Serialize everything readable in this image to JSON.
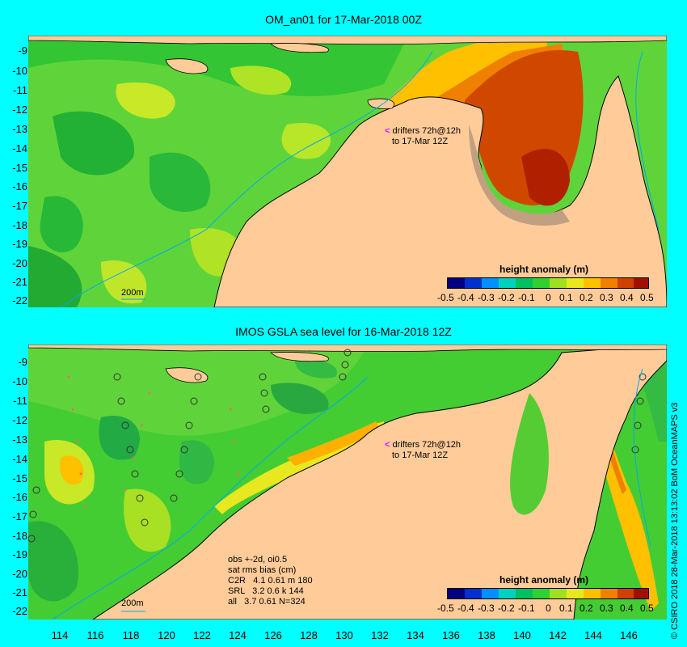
{
  "top_panel": {
    "title": "OM_an01 for 17-Mar-2018 00Z",
    "drifters_line1": "drifters 72h@12h",
    "drifters_line2": "to 17-Mar 12Z",
    "contour_label": "200m",
    "legend_title": "height anomaly (m)"
  },
  "bottom_panel": {
    "title": "IMOS GSLA sea level  for 16-Mar-2018 12Z",
    "drifters_line1": "drifters 72h@12h",
    "drifters_line2": "to 17-Mar 12Z",
    "contour_label": "200m",
    "legend_title": "height anomaly (m)",
    "stats": {
      "line1": "obs +-2d, oi0.5",
      "line2": "sat rms bias (cm)",
      "line3": "C2R   4.1 0.61 m 180",
      "line4": "SRL   3.2 0.6 k 144",
      "line5": "all   3.7 0.61 N=324"
    }
  },
  "y_ticks": [
    "-9",
    "-10",
    "-11",
    "-12",
    "-13",
    "-14",
    "-15",
    "-16",
    "-17",
    "-18",
    "-19",
    "-20",
    "-21",
    "-22"
  ],
  "x_ticks": [
    "114",
    "116",
    "118",
    "120",
    "122",
    "124",
    "126",
    "128",
    "130",
    "132",
    "134",
    "136",
    "138",
    "140",
    "142",
    "144",
    "146"
  ],
  "colorbar_ticks": [
    "-0.5",
    "-0.4",
    "-0.3",
    "-0.2",
    "-0.1",
    "0",
    "0.1",
    "0.2",
    "0.3",
    "0.4",
    "0.5"
  ],
  "colorbar_colors": [
    "#000080",
    "#0030d0",
    "#0090ff",
    "#00d0c0",
    "#00c060",
    "#30d030",
    "#a0e020",
    "#e8e820",
    "#ffc000",
    "#f08000",
    "#d04000",
    "#a01000"
  ],
  "side_credit": "© CSIRO 2018   28-Mar-2018 13:13:02 BoM OceanMAPS v3",
  "colors": {
    "background": "#00ffff",
    "land": "#ffcc99",
    "ocean_base": "#66dd33"
  }
}
